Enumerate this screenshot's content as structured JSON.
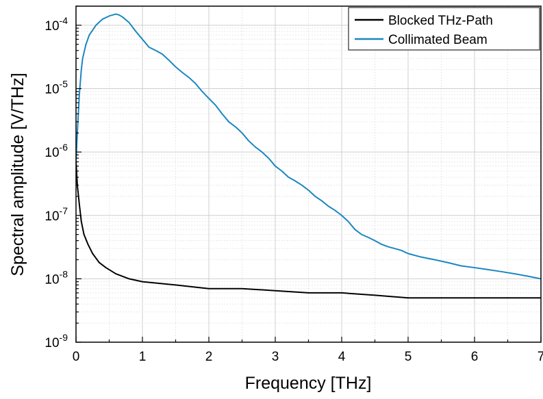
{
  "chart_data": {
    "type": "line",
    "title": "",
    "xlabel": "Frequency [THz]",
    "ylabel": "Spectral amplitude [V/THz]",
    "xlim": [
      0,
      7
    ],
    "ylim": [
      1e-09,
      0.0002
    ],
    "yscale": "log",
    "grid": true,
    "legend": "top-right",
    "x_ticks": [
      {
        "value": 0,
        "label": "0"
      },
      {
        "value": 1,
        "label": "1"
      },
      {
        "value": 2,
        "label": "2"
      },
      {
        "value": 3,
        "label": "3"
      },
      {
        "value": 4,
        "label": "4"
      },
      {
        "value": 5,
        "label": "5"
      },
      {
        "value": 6,
        "label": "6"
      },
      {
        "value": 7,
        "label": "7"
      }
    ],
    "y_ticks": [
      {
        "value": 1e-09,
        "base": "10",
        "exp": "-9"
      },
      {
        "value": 1e-08,
        "base": "10",
        "exp": "-8"
      },
      {
        "value": 1e-07,
        "base": "10",
        "exp": "-7"
      },
      {
        "value": 1e-06,
        "base": "10",
        "exp": "-6"
      },
      {
        "value": 1e-05,
        "base": "10",
        "exp": "-5"
      },
      {
        "value": 0.0001,
        "base": "10",
        "exp": "-4"
      }
    ],
    "series": [
      {
        "name": "Blocked THz-Path",
        "color": "#000000",
        "x": [
          0,
          0.02,
          0.05,
          0.08,
          0.12,
          0.18,
          0.25,
          0.35,
          0.45,
          0.6,
          0.8,
          1.0,
          1.5,
          2.0,
          2.5,
          3.0,
          3.5,
          4.0,
          4.5,
          5.0,
          5.5,
          6.0,
          6.5,
          7.0
        ],
        "y": [
          7e-07,
          3e-07,
          1.5e-07,
          8e-08,
          5e-08,
          3.5e-08,
          2.5e-08,
          1.8e-08,
          1.5e-08,
          1.2e-08,
          1e-08,
          9e-09,
          8e-09,
          7e-09,
          7e-09,
          6.5e-09,
          6e-09,
          6e-09,
          5.5e-09,
          5e-09,
          5e-09,
          5e-09,
          5e-09,
          5e-09
        ]
      },
      {
        "name": "Collimated Beam",
        "color": "#1a86c0",
        "x": [
          0,
          0.02,
          0.05,
          0.08,
          0.1,
          0.15,
          0.2,
          0.3,
          0.4,
          0.5,
          0.55,
          0.6,
          0.65,
          0.7,
          0.8,
          0.9,
          1.0,
          1.1,
          1.2,
          1.3,
          1.4,
          1.5,
          1.6,
          1.7,
          1.8,
          1.9,
          2.0,
          2.1,
          2.2,
          2.3,
          2.4,
          2.5,
          2.6,
          2.7,
          2.8,
          2.9,
          3.0,
          3.1,
          3.2,
          3.3,
          3.4,
          3.5,
          3.6,
          3.7,
          3.8,
          3.9,
          4.0,
          4.1,
          4.2,
          4.3,
          4.4,
          4.5,
          4.6,
          4.7,
          4.8,
          4.9,
          5.0,
          5.2,
          5.4,
          5.6,
          5.8,
          6.0,
          6.2,
          6.4,
          6.6,
          6.8,
          7.0
        ],
        "y": [
          7e-07,
          2e-06,
          8e-06,
          2e-05,
          3e-05,
          5e-05,
          7e-05,
          0.0001,
          0.000125,
          0.00014,
          0.000145,
          0.00015,
          0.000145,
          0.000135,
          0.00011,
          8e-05,
          6e-05,
          4.5e-05,
          4e-05,
          3.5e-05,
          2.8e-05,
          2.2e-05,
          1.8e-05,
          1.5e-05,
          1.2e-05,
          9e-06,
          7e-06,
          5.5e-06,
          4e-06,
          3e-06,
          2.5e-06,
          2e-06,
          1.5e-06,
          1.2e-06,
          1e-06,
          8e-07,
          6e-07,
          5e-07,
          4e-07,
          3.5e-07,
          3e-07,
          2.5e-07,
          2e-07,
          1.7e-07,
          1.4e-07,
          1.2e-07,
          1e-07,
          8e-08,
          6e-08,
          5e-08,
          4.5e-08,
          4e-08,
          3.5e-08,
          3.2e-08,
          3e-08,
          2.8e-08,
          2.5e-08,
          2.2e-08,
          2e-08,
          1.8e-08,
          1.6e-08,
          1.5e-08,
          1.4e-08,
          1.3e-08,
          1.2e-08,
          1.1e-08,
          1e-08
        ]
      }
    ]
  }
}
